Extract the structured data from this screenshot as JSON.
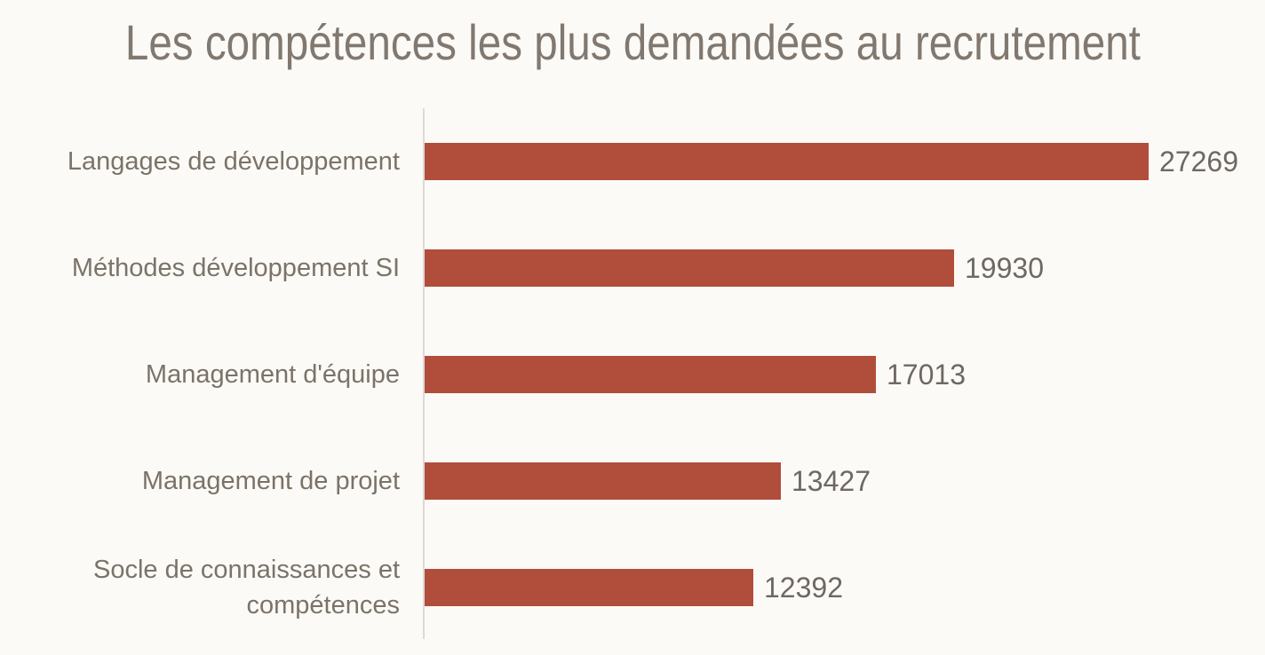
{
  "page": {
    "background_color": "#fcfaf7"
  },
  "chart_data": {
    "type": "bar",
    "orientation": "horizontal",
    "title": "Les compétences les plus demandées au recrutement",
    "categories": [
      "Langages de développement",
      "Méthodes développement SI",
      "Management d'équipe",
      "Management de projet",
      "Socle de connaissances et compétences"
    ],
    "values": [
      27269,
      19930,
      17013,
      13427,
      12392
    ],
    "value_labels": [
      "27269",
      "19930",
      "17013",
      "13427",
      "12392"
    ],
    "xlabel": "",
    "ylabel": "",
    "xlim": [
      0,
      27269
    ],
    "grid": false,
    "legend": false,
    "value_labels_shown": true,
    "bar_color": "#b14d3b",
    "title_color": "#81786f",
    "label_color": "#7b7368",
    "value_color": "#6e6862",
    "axis_line_color": "#dddad5"
  }
}
